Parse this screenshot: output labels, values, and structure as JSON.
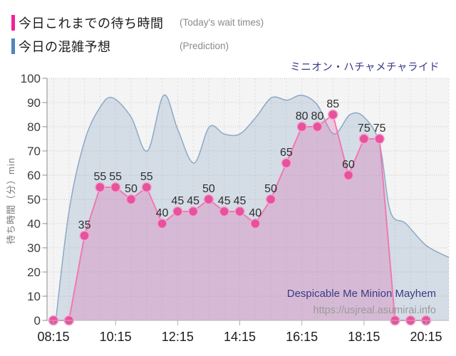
{
  "legend": [
    {
      "label": "今日これまでの待ち時間",
      "note": "(Today's wait times)",
      "color": "#f0219b"
    },
    {
      "label": "今日の混雑予想",
      "note": "(Prediction)",
      "color": "#4e87bc"
    }
  ],
  "watermark": {
    "line1": "Despicable Me Minion Mayhem",
    "line2": "https://usjreal.asumirai.info"
  },
  "chart_data": {
    "type": "area",
    "title": "ミニオン・ハチャメチャライド",
    "ylabel": "待ち時間（分）min",
    "ylim": [
      0,
      100
    ],
    "ytick_step": 10,
    "grid": true,
    "legend_position": "top-left",
    "x_tick_labels": [
      "08:15",
      "10:15",
      "12:15",
      "14:15",
      "16:15",
      "18:15",
      "20:15"
    ],
    "x_interval_minutes": 30,
    "series": [
      {
        "name": "今日これまでの待ち時間 (Today's wait times)",
        "type": "line_area_markers",
        "line_color": "#f178b4",
        "marker_color": "#e7529f",
        "marker_ring_color": "#f3a6cc",
        "fill_color": "rgba(219,108,176,0.30)",
        "times": [
          "08:15",
          "08:45",
          "09:15",
          "09:45",
          "10:15",
          "10:45",
          "11:15",
          "11:45",
          "12:15",
          "12:45",
          "13:15",
          "13:45",
          "14:15",
          "14:45",
          "15:15",
          "15:45",
          "16:15",
          "16:45",
          "17:15",
          "17:45",
          "18:15",
          "18:45",
          "19:15",
          "19:45",
          "20:15"
        ],
        "values": [
          0,
          0,
          35,
          55,
          55,
          50,
          55,
          40,
          45,
          45,
          50,
          45,
          45,
          40,
          50,
          65,
          80,
          80,
          85,
          60,
          75,
          75,
          0,
          0,
          0
        ],
        "point_labels_shown_for_nonzero": true
      },
      {
        "name": "今日の混雑予想 (Prediction)",
        "type": "smooth_area",
        "line_color": "#8ca9c6",
        "fill_color": "rgba(124,157,192,0.27)",
        "offsets_30min_from_0815": [
          0.15,
          1,
          2,
          3,
          3.8,
          5,
          6.05,
          7.1,
          8,
          9.05,
          10.05,
          11,
          12,
          13.05,
          14.05,
          15.05,
          16,
          17,
          18.05,
          19.1,
          20,
          21,
          21.7,
          22.7,
          24,
          25.47
        ],
        "values": [
          0,
          45,
          74,
          88,
          92,
          84,
          70,
          93,
          79,
          65,
          80,
          77,
          77,
          84,
          92,
          91,
          93,
          89,
          77,
          85,
          84,
          73,
          45,
          40,
          31,
          26
        ]
      }
    ]
  }
}
